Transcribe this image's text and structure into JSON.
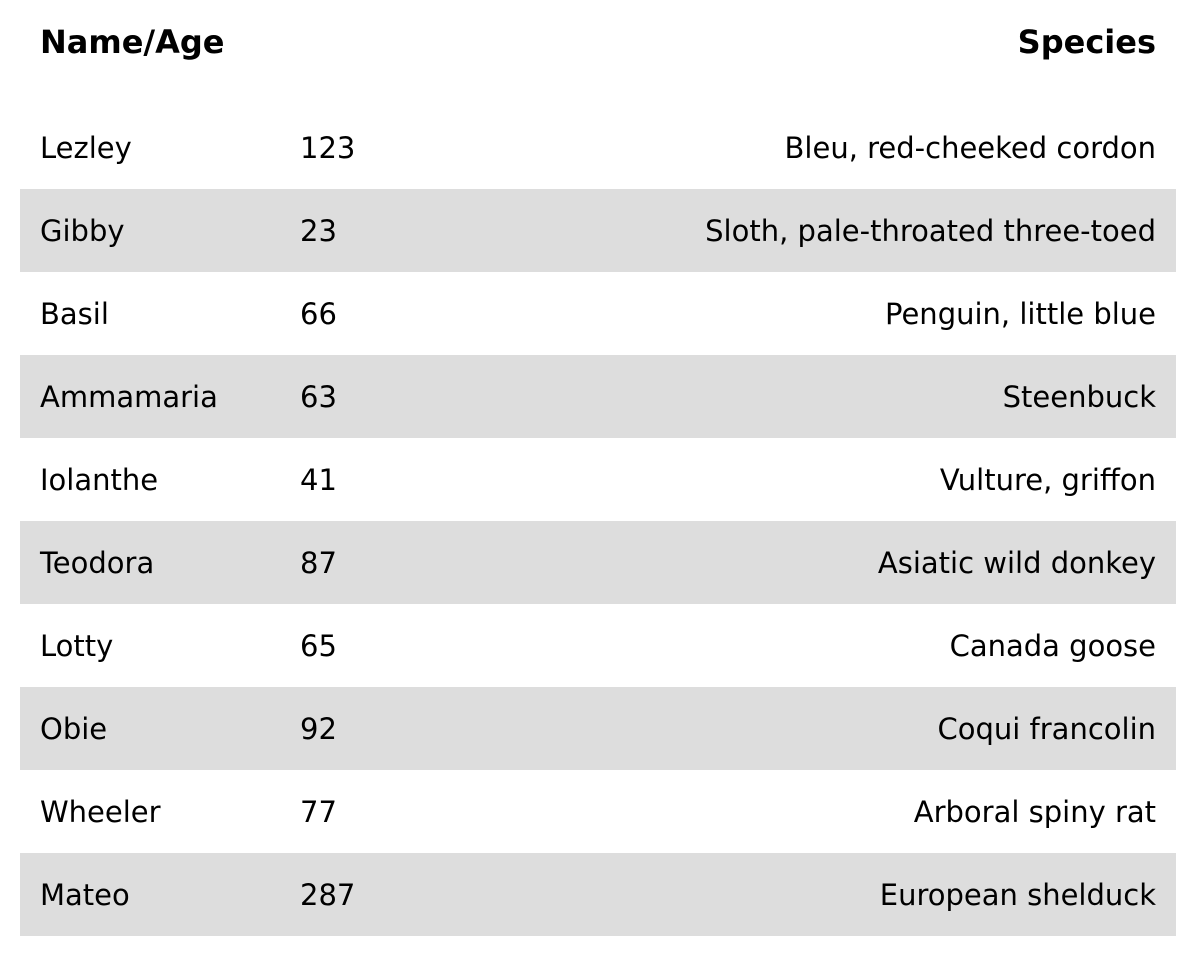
{
  "table": {
    "headers": {
      "name_age": "Name/Age",
      "species": "Species"
    },
    "rows": [
      {
        "name": "Lezley",
        "age": "123",
        "species": "Bleu, red-cheeked cordon"
      },
      {
        "name": "Gibby",
        "age": "23",
        "species": "Sloth, pale-throated three-toed"
      },
      {
        "name": "Basil",
        "age": "66",
        "species": "Penguin, little blue"
      },
      {
        "name": "Ammamaria",
        "age": "63",
        "species": "Steenbuck"
      },
      {
        "name": "Iolanthe",
        "age": "41",
        "species": "Vulture, griffon"
      },
      {
        "name": "Teodora",
        "age": "87",
        "species": "Asiatic wild donkey"
      },
      {
        "name": "Lotty",
        "age": "65",
        "species": "Canada goose"
      },
      {
        "name": "Obie",
        "age": "92",
        "species": "Coqui francolin"
      },
      {
        "name": "Wheeler",
        "age": "77",
        "species": "Arboral spiny rat"
      },
      {
        "name": "Mateo",
        "age": "287",
        "species": "European shelduck"
      }
    ],
    "colors": {
      "stripe": "#dddddd",
      "background": "#ffffff",
      "text": "#000000"
    }
  }
}
